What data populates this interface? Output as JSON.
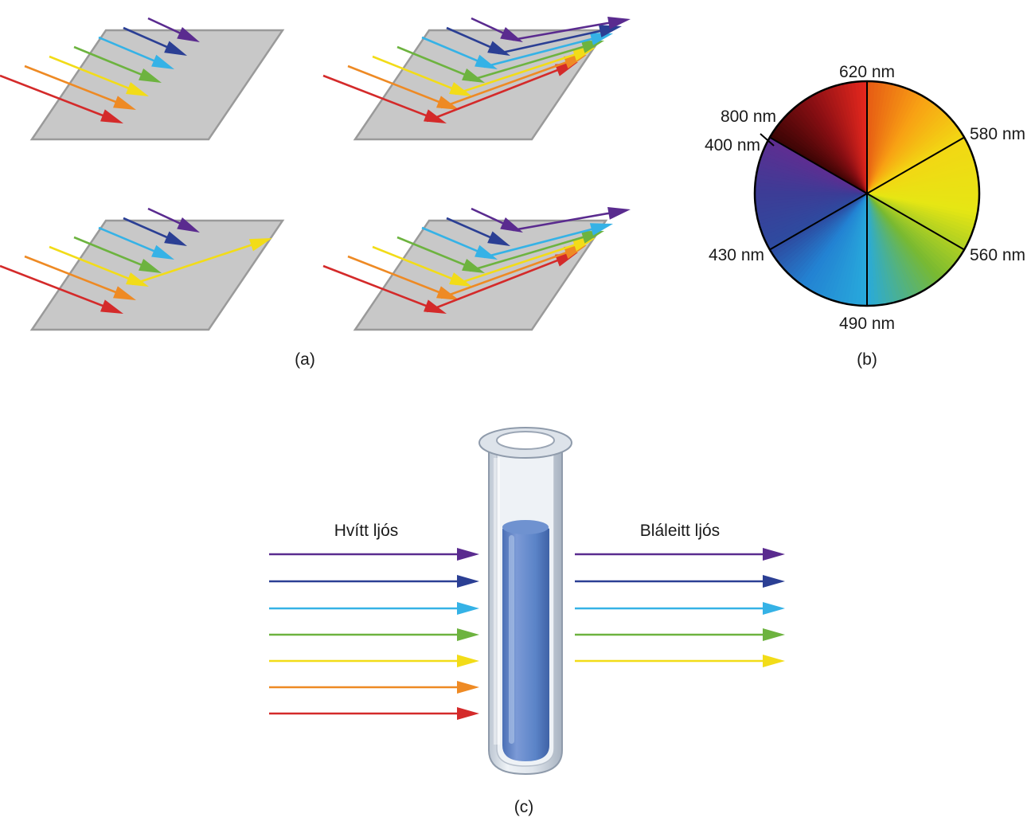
{
  "colors": {
    "red": "#d42a2a",
    "orange": "#ee8a24",
    "yellow": "#f2dc18",
    "green": "#6db33f",
    "cyan": "#35b2e6",
    "blue": "#2b3f94",
    "violet": "#5a2b8f",
    "plate": "#c8c8c8",
    "plate_edge": "#9a9a9a",
    "solution": "#5b84c8"
  },
  "panel_a": {
    "caption": "(a)",
    "incident_order": [
      "red",
      "orange",
      "yellow",
      "green",
      "cyan",
      "blue",
      "violet"
    ],
    "plates": [
      {
        "name": "absorbs-all",
        "reflected": []
      },
      {
        "name": "reflects-all",
        "reflected": [
          "red",
          "orange",
          "yellow",
          "green",
          "cyan",
          "blue",
          "violet"
        ]
      },
      {
        "name": "reflects-yellow",
        "reflected": [
          "yellow"
        ]
      },
      {
        "name": "reflects-most",
        "reflected": [
          "red",
          "orange",
          "yellow",
          "green",
          "cyan",
          "violet"
        ]
      }
    ]
  },
  "panel_b": {
    "caption": "(b)",
    "labels": {
      "top": "620 nm",
      "upper_right": "580 nm",
      "lower_right": "560 nm",
      "bottom": "490 nm",
      "lower_left": "430 nm",
      "upper_left_outer": "800 nm",
      "upper_left_inner": "400 nm"
    }
  },
  "panel_c": {
    "caption": "(c)",
    "incoming_label": "Hvítt ljós",
    "outgoing_label": "Bláleitt ljós",
    "incoming_colors": [
      "violet",
      "blue",
      "cyan",
      "green",
      "yellow",
      "orange",
      "red"
    ],
    "outgoing_colors": [
      "violet",
      "blue",
      "cyan",
      "green",
      "yellow"
    ]
  }
}
